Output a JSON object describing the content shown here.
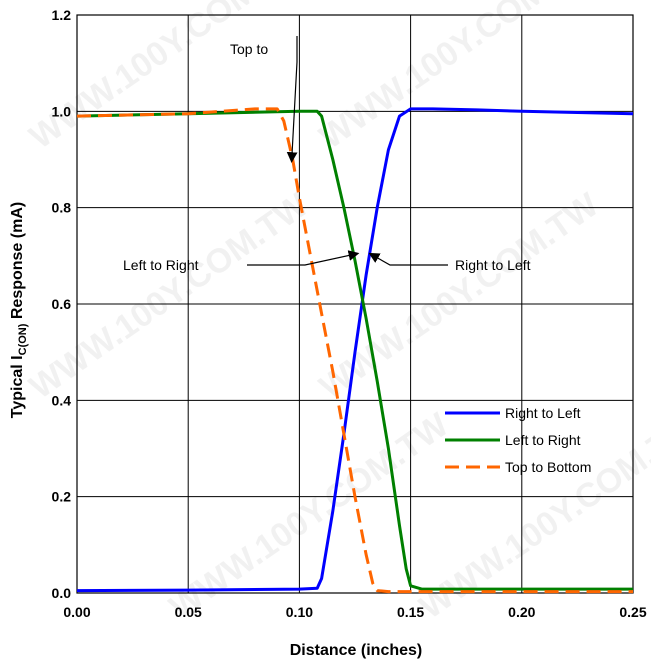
{
  "chart_data": {
    "type": "line",
    "xlabel": "Distance (inches)",
    "ylabel": {
      "prefix": "Typical I",
      "subscript": "C(ON)",
      "suffix": " Response (mA)"
    },
    "xlim": [
      0,
      0.25
    ],
    "ylim": [
      0,
      1.2
    ],
    "x_ticks": [
      0,
      0.05,
      0.1,
      0.15,
      0.2,
      0.25
    ],
    "x_tick_labels": [
      "0.00",
      "0.05",
      "0.10",
      "0.15",
      "0.20",
      "0.25"
    ],
    "y_ticks": [
      0,
      0.2,
      0.4,
      0.6,
      0.8,
      1.0,
      1.2
    ],
    "y_tick_labels": [
      "0.0",
      "0.2",
      "0.4",
      "0.6",
      "0.8",
      "1.0",
      "1.2"
    ],
    "grid": true,
    "legend_position": "bottom-right",
    "series": [
      {
        "name": "Right to Left",
        "color": "#0000ff",
        "dash": "solid",
        "x": [
          0,
          0.05,
          0.1,
          0.108,
          0.11,
          0.115,
          0.12,
          0.125,
          0.13,
          0.135,
          0.14,
          0.145,
          0.15,
          0.155,
          0.16,
          0.18,
          0.2,
          0.22,
          0.25
        ],
        "y": [
          0.005,
          0.006,
          0.008,
          0.01,
          0.03,
          0.17,
          0.33,
          0.5,
          0.66,
          0.8,
          0.92,
          0.99,
          1.005,
          1.005,
          1.005,
          1.003,
          1.0,
          0.998,
          0.995
        ]
      },
      {
        "name": "Left to Right",
        "color": "#008000",
        "dash": "solid",
        "x": [
          0,
          0.05,
          0.1,
          0.105,
          0.108,
          0.11,
          0.115,
          0.12,
          0.125,
          0.13,
          0.135,
          0.14,
          0.145,
          0.148,
          0.15,
          0.155,
          0.16,
          0.2,
          0.25
        ],
        "y": [
          0.99,
          0.995,
          1.0,
          1.0,
          1.0,
          0.99,
          0.9,
          0.8,
          0.69,
          0.57,
          0.44,
          0.3,
          0.14,
          0.05,
          0.015,
          0.008,
          0.008,
          0.008,
          0.008
        ]
      },
      {
        "name": "Top to Bottom",
        "color": "#ff6600",
        "dash": "dashed",
        "x": [
          0,
          0.05,
          0.08,
          0.09,
          0.093,
          0.097,
          0.1,
          0.105,
          0.11,
          0.115,
          0.12,
          0.125,
          0.13,
          0.133,
          0.135,
          0.14,
          0.15,
          0.2,
          0.25
        ],
        "y": [
          0.99,
          0.995,
          1.005,
          1.005,
          0.98,
          0.9,
          0.82,
          0.7,
          0.58,
          0.46,
          0.33,
          0.2,
          0.08,
          0.02,
          0.005,
          0.003,
          0.003,
          0.003,
          0.003
        ]
      }
    ],
    "annotations": [
      {
        "id": "top",
        "text": "Top to",
        "arrow_to": [
          0.0965,
          0.895
        ]
      },
      {
        "id": "left",
        "text": "Left to Right",
        "arrow_to": [
          0.1265,
          0.705
        ]
      },
      {
        "id": "right",
        "text": "Right to Left",
        "arrow_to": [
          0.1315,
          0.705
        ]
      }
    ]
  },
  "watermark_text": "WWW.100Y.COM.TW"
}
